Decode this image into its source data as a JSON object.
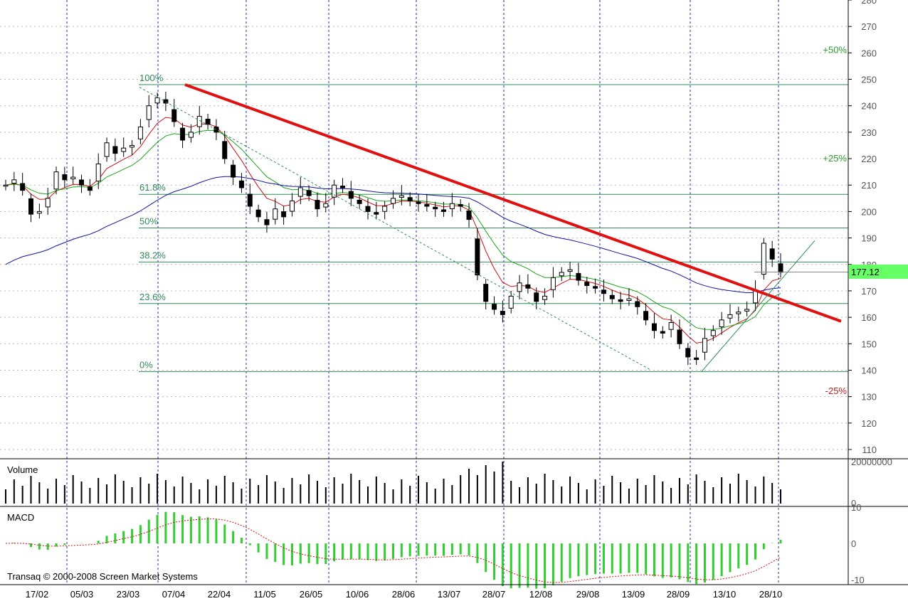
{
  "chart_data": {
    "type": "candlestick",
    "copyright": "Transaq © 2000-2008 Screen Market Systems",
    "price_axis": {
      "range": [
        110,
        280
      ],
      "ticks": [
        280,
        270,
        260,
        250,
        240,
        230,
        220,
        210,
        200,
        190,
        180,
        170,
        160,
        150,
        140,
        130,
        120,
        110
      ]
    },
    "last_price": "177.12",
    "x_labels": [
      "17/02",
      "05/03",
      "23/03",
      "07/04",
      "22/04",
      "11/05",
      "26/05",
      "10/06",
      "28/06",
      "13/07",
      "28/07",
      "12/08",
      "29/08",
      "13/09",
      "28/09",
      "13/10",
      "28/10"
    ],
    "fibonacci": {
      "high": 248,
      "low": 139.5,
      "levels": [
        {
          "label": "100%",
          "value": 248
        },
        {
          "label": "61.8%",
          "value": 206.5
        },
        {
          "label": "50%",
          "value": 193.8
        },
        {
          "label": "38.2%",
          "value": 180.9
        },
        {
          "label": "23.6%",
          "value": 165.2
        },
        {
          "label": "0%",
          "value": 139.5
        }
      ]
    },
    "projections": [
      {
        "label": "+50%",
        "value": 261,
        "color": "#2e9a2e"
      },
      {
        "label": "+25%",
        "value": 220,
        "color": "#2e9a2e"
      },
      {
        "label": "-25%",
        "value": 132,
        "color": "#c02020"
      }
    ],
    "closes": [
      210,
      212,
      208,
      199,
      200,
      205,
      215,
      212,
      213,
      210,
      208,
      218,
      226,
      222,
      224,
      225,
      232,
      240,
      243,
      241,
      234,
      227,
      230,
      236,
      233,
      230,
      220,
      213,
      209,
      202,
      198,
      195,
      201,
      198,
      204,
      209,
      206,
      201,
      203,
      210,
      209,
      205,
      203,
      200,
      199,
      202,
      205,
      206,
      204,
      203,
      202,
      201,
      200,
      203,
      202,
      197,
      176,
      166,
      163,
      161,
      168,
      173,
      171,
      166,
      168,
      175,
      177,
      178,
      174,
      172,
      171,
      169,
      167,
      166,
      167,
      164,
      159,
      155,
      154,
      158,
      150,
      145,
      144,
      152,
      155,
      159,
      161,
      162,
      163,
      170,
      188,
      182,
      177
    ],
    "volume": {
      "title": "Volume",
      "axis_labels": [
        "20000000",
        "0"
      ]
    },
    "macd": {
      "title": "MACD",
      "axis_labels": [
        "10",
        "0",
        "-10"
      ]
    }
  }
}
